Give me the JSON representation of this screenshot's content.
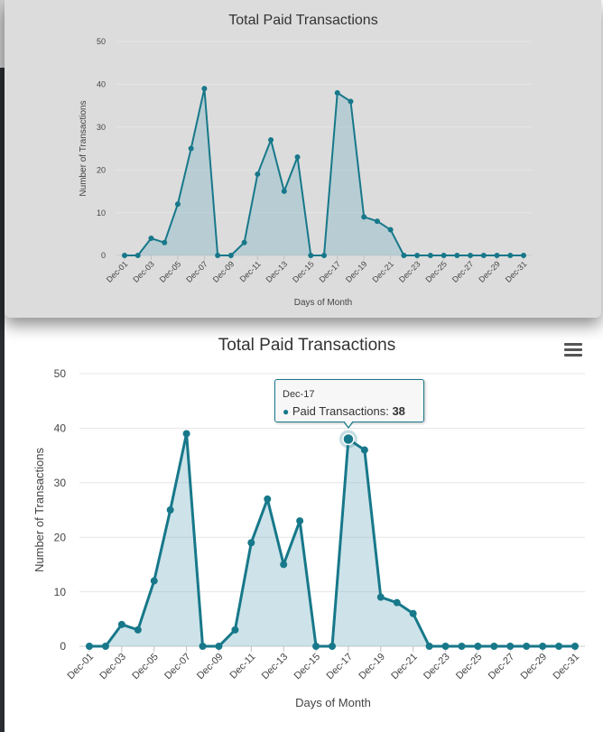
{
  "colors": {
    "series": "#17788a",
    "area": "rgba(124,181,196,0.38)",
    "grid": "#e6e6e6",
    "axis_text": "#444444"
  },
  "chart_data": [
    {
      "type": "area",
      "title": "Total Paid Transactions",
      "xlabel": "Days of Month",
      "ylabel": "Number of Transactions",
      "ylim": [
        0,
        50
      ],
      "yticks": [
        0,
        10,
        20,
        30,
        40,
        50
      ],
      "grid": true,
      "categories": [
        "Dec-01",
        "Dec-02",
        "Dec-03",
        "Dec-04",
        "Dec-05",
        "Dec-06",
        "Dec-07",
        "Dec-08",
        "Dec-09",
        "Dec-10",
        "Dec-11",
        "Dec-12",
        "Dec-13",
        "Dec-14",
        "Dec-15",
        "Dec-16",
        "Dec-17",
        "Dec-18",
        "Dec-19",
        "Dec-20",
        "Dec-21",
        "Dec-22",
        "Dec-23",
        "Dec-24",
        "Dec-25",
        "Dec-26",
        "Dec-27",
        "Dec-28",
        "Dec-29",
        "Dec-30",
        "Dec-31"
      ],
      "tick_labels": [
        "Dec-01",
        "Dec-03",
        "Dec-05",
        "Dec-07",
        "Dec-09",
        "Dec-11",
        "Dec-13",
        "Dec-15",
        "Dec-17",
        "Dec-19",
        "Dec-21",
        "Dec-23",
        "Dec-25",
        "Dec-27",
        "Dec-29",
        "Dec-31"
      ],
      "series": [
        {
          "name": "Paid Transactions",
          "values": [
            0,
            0,
            4,
            3,
            12,
            25,
            39,
            0,
            0,
            3,
            19,
            27,
            15,
            23,
            0,
            0,
            38,
            36,
            9,
            8,
            6,
            0,
            0,
            0,
            0,
            0,
            0,
            0,
            0,
            0,
            0
          ]
        }
      ]
    },
    {
      "type": "area",
      "title": "Total Paid Transactions",
      "xlabel": "Days of Month",
      "ylabel": "Number of Transactions",
      "ylim": [
        0,
        50
      ],
      "yticks": [
        0,
        10,
        20,
        30,
        40,
        50
      ],
      "grid": true,
      "categories": [
        "Dec-01",
        "Dec-02",
        "Dec-03",
        "Dec-04",
        "Dec-05",
        "Dec-06",
        "Dec-07",
        "Dec-08",
        "Dec-09",
        "Dec-10",
        "Dec-11",
        "Dec-12",
        "Dec-13",
        "Dec-14",
        "Dec-15",
        "Dec-16",
        "Dec-17",
        "Dec-18",
        "Dec-19",
        "Dec-20",
        "Dec-21",
        "Dec-22",
        "Dec-23",
        "Dec-24",
        "Dec-25",
        "Dec-26",
        "Dec-27",
        "Dec-28",
        "Dec-29",
        "Dec-30",
        "Dec-31"
      ],
      "tick_labels": [
        "Dec-01",
        "Dec-03",
        "Dec-05",
        "Dec-07",
        "Dec-09",
        "Dec-11",
        "Dec-13",
        "Dec-15",
        "Dec-17",
        "Dec-19",
        "Dec-21",
        "Dec-23",
        "Dec-25",
        "Dec-27",
        "Dec-29",
        "Dec-31"
      ],
      "series": [
        {
          "name": "Paid Transactions",
          "values": [
            0,
            0,
            4,
            3,
            12,
            25,
            39,
            0,
            0,
            3,
            19,
            27,
            15,
            23,
            0,
            0,
            38,
            36,
            9,
            8,
            6,
            0,
            0,
            0,
            0,
            0,
            0,
            0,
            0,
            0,
            0
          ]
        }
      ],
      "tooltip": {
        "category": "Dec-17",
        "series_name": "Paid Transactions",
        "value": 38,
        "marker": "●"
      }
    }
  ],
  "menu": {
    "icon": "hamburger-menu-icon"
  }
}
